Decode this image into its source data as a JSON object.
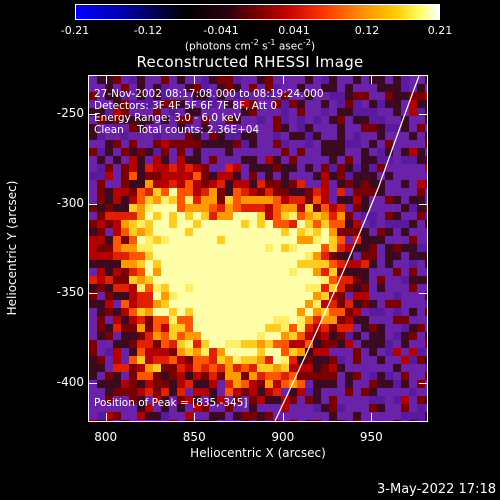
{
  "colorbar": {
    "ticks": [
      "-0.21",
      "-0.12",
      "-0.041",
      "0.041",
      "0.12",
      "0.21"
    ],
    "units_prefix": "(photons cm",
    "units_exp1": "-2",
    "units_mid": " s",
    "units_exp2": "-1",
    "units_mid2": " asec",
    "units_exp3": "-2",
    "units_suffix": ")"
  },
  "title": "Reconstructed RHESSI Image",
  "info": {
    "time_range": "27-Nov-2002 08:17:08.000 to 08:19:24.000",
    "detectors": "Detectors: 3F 4F 5F 6F 7F 8F, Att 0",
    "energy": "Energy Range: 3.0 - 6.0 keV",
    "clean": "Clean    Total counts: 2.36E+04",
    "peak": "Position of Peak = [835,-345]"
  },
  "axes": {
    "xlabel": "Heliocentric X (arcsec)",
    "ylabel": "Heliocentric Y (arcsec)",
    "xticks": [
      "800",
      "850",
      "900",
      "950"
    ],
    "yticks": [
      "-250",
      "-300",
      "-350",
      "-400"
    ],
    "xlim": [
      790,
      982
    ],
    "ylim": [
      -422,
      -228
    ]
  },
  "timestamp": "3-May-2022 17:18",
  "colors": {
    "background": "#000000",
    "text": "#ffffff",
    "limb_line": "#ffffff"
  }
}
